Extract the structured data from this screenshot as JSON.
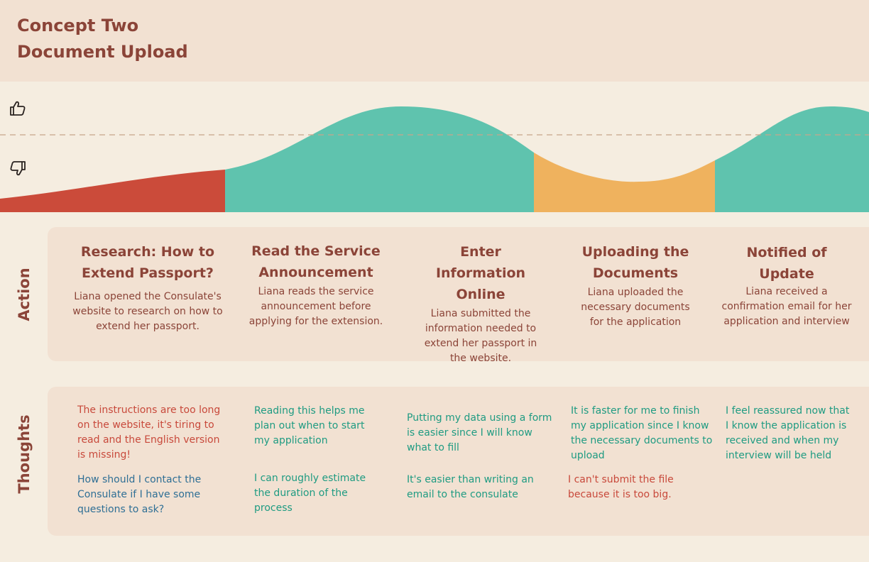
{
  "header": {
    "title_line1": "Concept Two",
    "title_line2": "Document Upload"
  },
  "colors": {
    "header_bg": "#f2e1d2",
    "page_bg": "#f5ede0",
    "title": "#8b4438",
    "negative": "#c8493b",
    "positive": "#1f9b82",
    "neutral": "#2f6f95",
    "stage_red": "#cb4b3a",
    "stage_teal": "#5fc3ae",
    "stage_orange": "#efb25e"
  },
  "emotion_curve": {
    "icons": [
      "thumbs-up-icon",
      "thumbs-down-icon"
    ],
    "stages": [
      {
        "stage": "Research: How to Extend Passport?",
        "sentiment": "negative",
        "color": "#cb4b3a"
      },
      {
        "stage": "Read the Service Announcement",
        "sentiment": "positive",
        "color": "#5fc3ae"
      },
      {
        "stage": "Enter Information Online",
        "sentiment": "positive",
        "color": "#5fc3ae"
      },
      {
        "stage": "Uploading the Documents",
        "sentiment": "neutral",
        "color": "#efb25e"
      },
      {
        "stage": "Notified of Update",
        "sentiment": "positive",
        "color": "#5fc3ae"
      }
    ]
  },
  "rows": {
    "action_label": "Action",
    "thoughts_label": "Thoughts"
  },
  "actions": [
    {
      "title": "Research: How to Extend Passport?",
      "desc": "Liana opened the Consulate's website to research on how to extend her passport."
    },
    {
      "title": "Read the Service Announcement",
      "desc": "Liana reads the service announcement before applying for the extension."
    },
    {
      "title": "Enter Information Online",
      "desc": "Liana submitted the information needed to extend her passport in the website."
    },
    {
      "title": "Uploading the Documents",
      "desc": "Liana uploaded the necessary documents for the application"
    },
    {
      "title": "Notified of Update",
      "desc": "Liana received a confirmation email for her application and interview"
    }
  ],
  "thoughts": [
    {
      "text": "The instructions are too long on the website, it's tiring to read and the English version is missing!",
      "tone": "negative"
    },
    {
      "text": "How should I contact the Consulate if I have some questions to ask?",
      "tone": "neutral"
    },
    {
      "text": "Reading this helps me plan out when to start my application",
      "tone": "positive"
    },
    {
      "text": "I can roughly estimate the duration of the process",
      "tone": "positive"
    },
    {
      "text": "Putting my data using a form is easier since I will know what to fill",
      "tone": "positive"
    },
    {
      "text": "It's easier than writing an email to the consulate",
      "tone": "positive"
    },
    {
      "text": "It is faster for me to finish my application since I know the necessary documents to upload",
      "tone": "positive"
    },
    {
      "text": "I can't submit the file because it is too big.",
      "tone": "negative"
    },
    {
      "text": "I feel reassured now that I know the application is received and when my interview will be held",
      "tone": "positive"
    }
  ]
}
